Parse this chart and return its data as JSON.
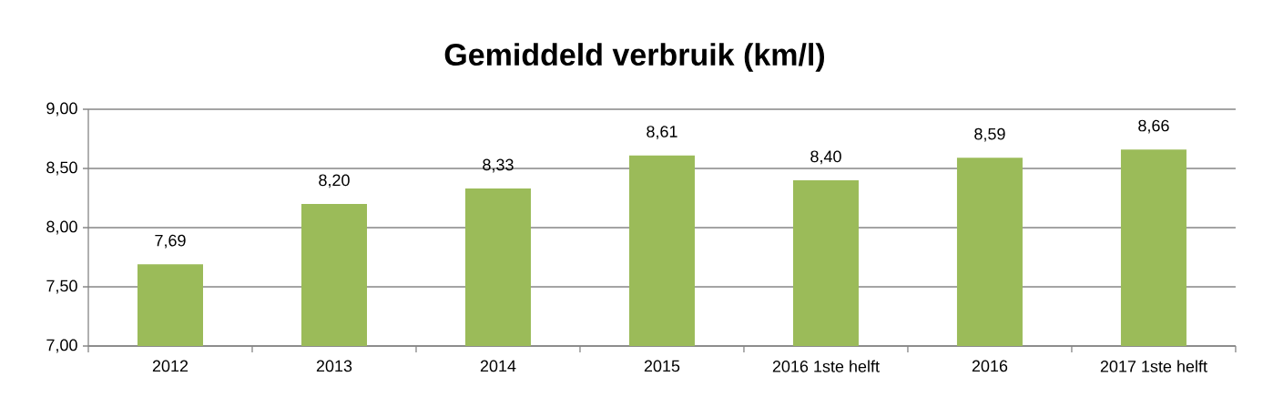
{
  "chart_data": {
    "type": "bar",
    "title": "Gemiddeld verbruik (km/l)",
    "categories": [
      "2012",
      "2013",
      "2014",
      "2015",
      "2016 1ste helft",
      "2016",
      "2017 1ste helft"
    ],
    "values": [
      7.69,
      8.2,
      8.33,
      8.61,
      8.4,
      8.59,
      8.66
    ],
    "value_labels": [
      "7,69",
      "8,20",
      "8,33",
      "8,61",
      "8,40",
      "8,59",
      "8,66"
    ],
    "color": "#9bbb59",
    "ylim": [
      7,
      9
    ],
    "yticks": [
      {
        "value": 7,
        "label": "7,00"
      },
      {
        "value": 7.5,
        "label": "7,50"
      },
      {
        "value": 8,
        "label": "8,00"
      },
      {
        "value": 8.5,
        "label": "8,50"
      },
      {
        "value": 9,
        "label": "9,00"
      }
    ],
    "grid": "y"
  }
}
